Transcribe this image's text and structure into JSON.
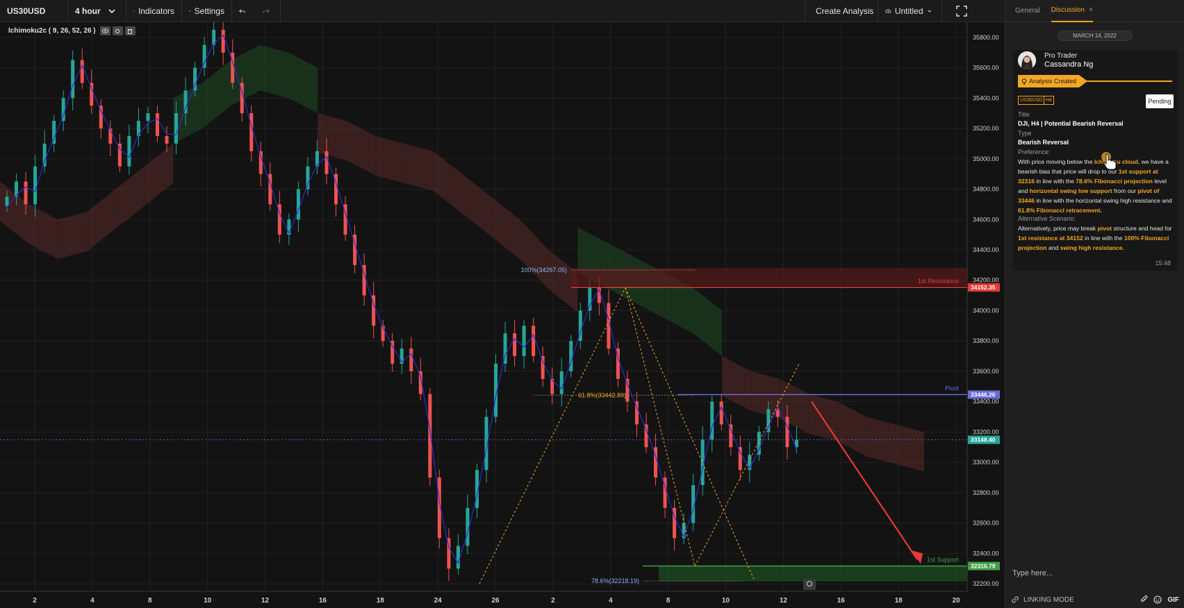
{
  "toolbar": {
    "symbol": "US30USD",
    "interval": "4 hour",
    "indicators_label": "Indicators",
    "settings_label": "Settings",
    "create_analysis_label": "Create Analysis",
    "layout_name": "Untitled"
  },
  "indicator": {
    "label": "Ichimoku2c ( 9, 26, 52, 26 )"
  },
  "chart_data": {
    "type": "candlestick",
    "ylim": [
      32150,
      35900
    ],
    "y_ticks": [
      "35800.00",
      "35600.00",
      "35400.00",
      "35200.00",
      "35000.00",
      "34800.00",
      "34600.00",
      "34400.00",
      "34200.00",
      "34000.00",
      "33800.00",
      "33600.00",
      "33400.00",
      "33200.00",
      "33000.00",
      "32800.00",
      "32600.00",
      "32400.00",
      "32200.00"
    ],
    "x_ticks": [
      "2",
      "4",
      "8",
      "10",
      "12",
      "16",
      "18",
      "24",
      "26",
      "2",
      "4",
      "8",
      "10",
      "12",
      "16",
      "18",
      "20"
    ],
    "price_close": [
      34750,
      34850,
      34700,
      34950,
      35100,
      35250,
      35400,
      35650,
      35500,
      35350,
      35200,
      35100,
      34950,
      35150,
      35250,
      35300,
      35150,
      35100,
      35300,
      35450,
      35600,
      35750,
      35850,
      35700,
      35500,
      35300,
      35050,
      34900,
      34700,
      34500,
      34600,
      34800,
      34950,
      35050,
      34900,
      34700,
      34500,
      34300,
      34100,
      33900,
      33800,
      33650,
      33750,
      33600,
      33450,
      32900,
      32500,
      32300,
      32450,
      32700,
      32950,
      33300,
      33650,
      33850,
      33700,
      33900,
      33700,
      33550,
      33450,
      33600,
      33800,
      34000,
      34150,
      34050,
      33750,
      33550,
      33400,
      33250,
      33100,
      32900,
      32700,
      32500,
      32600,
      32850,
      33150,
      33400,
      33250,
      33100,
      32950,
      33050,
      33200,
      33350,
      33300,
      33100,
      33150
    ],
    "ichimoku_cloud_top": [
      34850,
      34700,
      34600,
      34650,
      34800,
      34950,
      35100,
      35200,
      35350,
      35450,
      35400,
      35300,
      35250,
      35150,
      35100,
      35050,
      34900,
      34750,
      34600,
      34400,
      34250,
      34150,
      34050,
      33950,
      33850,
      33700,
      33600,
      33550,
      33450,
      33400,
      33300,
      33250,
      33200
    ],
    "annotations": [
      {
        "label": "100%(34267.05)",
        "value": 34267.05
      },
      {
        "label": "61.8%(33442.89)",
        "value": 33442.89
      },
      {
        "label": "78.6%(32218.19)",
        "value": 32218.19
      }
    ],
    "levels": [
      {
        "name": "1st Resistance",
        "value": 34152.35,
        "tag": "34152.35",
        "color": "#e53935"
      },
      {
        "name": "Pivot",
        "value": 33446.26,
        "tag": "33446.26",
        "color": "#6b6bd8"
      },
      {
        "name": "1st Support",
        "value": 32316.79,
        "tag": "32316.79",
        "color": "#43a047"
      }
    ],
    "current_price": {
      "value": 33148.4,
      "tag": "33148.40",
      "color": "#26a69a"
    }
  },
  "panel": {
    "tabs": [
      {
        "label": "General"
      },
      {
        "label": "Discussion"
      }
    ],
    "close_tab": "×",
    "date": "MARCH 14, 2022",
    "author_role": "Pro Trader",
    "author_name": "Cassandra Ng",
    "status_label": "Analysis Created",
    "tags": [
      "US30USD",
      "H4"
    ],
    "pending_label": "Pending",
    "title_label": "Title",
    "title_value": "DJI, H4 | Potential Bearish Reversal",
    "type_label": "Type",
    "type_value": "Bearish Reversal",
    "preference_label": "Preference:",
    "pref": [
      "With price moving below the ",
      "Ichimoku cloud",
      ", we have a bearish bias that price will drop to our ",
      "1st support at 32316",
      " in line with the ",
      "78.6% Fibonacci projection",
      " level and ",
      "horizontal swing low support",
      " from our ",
      "pivot of 33446",
      " in line with the horizontal swing high resistance and ",
      "61.8% Fibonacci retracement."
    ],
    "alt_label": "Alternative Scenario:",
    "alt": [
      "Alternatively, price may break ",
      "pivot",
      " structure and head for ",
      "1st resistance at 34152",
      " in line with the ",
      "100% Fibonacci projection",
      " and ",
      "swing high resistance."
    ],
    "time": "15:48",
    "input_placeholder": "Type here...",
    "footer_label": "LINKING MODE",
    "gif_label": "GIF"
  },
  "colors": {
    "accent": "#f5a623",
    "bull": "#26a69a",
    "bear": "#ef5350"
  }
}
